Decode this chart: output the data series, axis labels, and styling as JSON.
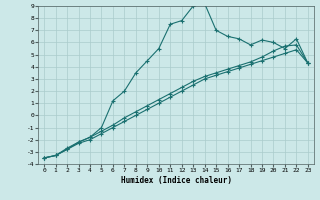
{
  "xlabel": "Humidex (Indice chaleur)",
  "ylabel": "",
  "xlim": [
    -0.5,
    23.5
  ],
  "ylim": [
    -4,
    9
  ],
  "bg_color": "#cce8e8",
  "grid_color": "#aacccc",
  "line_color": "#1a7070",
  "line1_x": [
    0,
    1,
    2,
    3,
    4,
    5,
    6,
    7,
    8,
    9,
    10,
    11,
    12,
    13,
    14,
    15,
    16,
    17,
    18,
    19,
    20,
    21,
    22,
    23
  ],
  "line1_y": [
    -3.5,
    -3.3,
    -2.8,
    -2.3,
    -2.0,
    -1.5,
    -1.0,
    -0.5,
    0.0,
    0.5,
    1.0,
    1.5,
    2.0,
    2.5,
    3.0,
    3.3,
    3.6,
    3.9,
    4.2,
    4.5,
    4.8,
    5.1,
    5.4,
    4.3
  ],
  "line2_x": [
    0,
    1,
    2,
    3,
    4,
    5,
    6,
    7,
    8,
    9,
    10,
    11,
    12,
    13,
    14,
    15,
    16,
    17,
    18,
    19,
    20,
    21,
    22,
    23
  ],
  "line2_y": [
    -3.5,
    -3.3,
    -2.8,
    -2.2,
    -1.8,
    -1.3,
    -0.8,
    -0.2,
    0.3,
    0.8,
    1.3,
    1.8,
    2.3,
    2.8,
    3.2,
    3.5,
    3.8,
    4.1,
    4.4,
    4.8,
    5.3,
    5.7,
    5.8,
    4.3
  ],
  "line3_x": [
    0,
    1,
    2,
    3,
    4,
    5,
    6,
    7,
    8,
    9,
    10,
    11,
    12,
    13,
    14,
    15,
    16,
    17,
    18,
    19,
    20,
    21,
    22,
    23
  ],
  "line3_y": [
    -3.5,
    -3.3,
    -2.7,
    -2.2,
    -1.8,
    -1.0,
    1.2,
    2.0,
    3.5,
    4.5,
    5.5,
    7.5,
    7.8,
    9.0,
    9.2,
    7.0,
    6.5,
    6.3,
    5.8,
    6.2,
    6.0,
    5.5,
    6.3,
    4.3
  ],
  "yticks": [
    -4,
    -3,
    -2,
    -1,
    0,
    1,
    2,
    3,
    4,
    5,
    6,
    7,
    8,
    9
  ],
  "xticks": [
    0,
    1,
    2,
    3,
    4,
    5,
    6,
    7,
    8,
    9,
    10,
    11,
    12,
    13,
    14,
    15,
    16,
    17,
    18,
    19,
    20,
    21,
    22,
    23
  ]
}
